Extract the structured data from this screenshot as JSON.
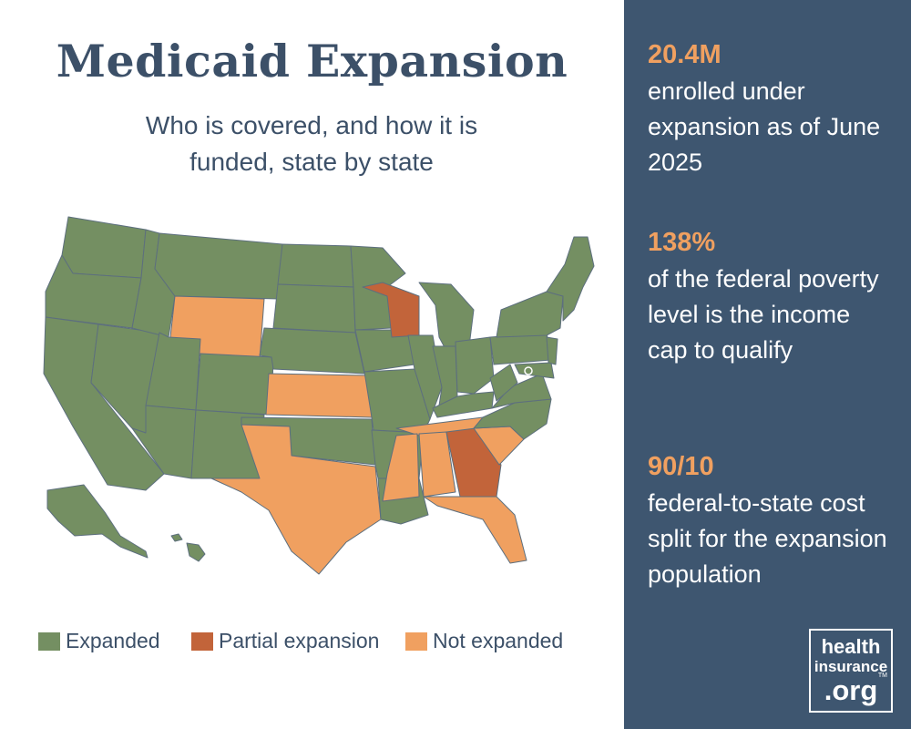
{
  "header": {
    "title": "Medicaid Expansion",
    "subtitle": "Who is covered, and how it is funded, state by state"
  },
  "colors": {
    "expanded": "#748f62",
    "partial": "#c2643a",
    "not_expanded": "#f0a060",
    "borders": "#5d6f7e",
    "panel": "#3e5670",
    "stat_accent": "#f0a060"
  },
  "map": {
    "state_status": {
      "WY": "not_expanded",
      "KS": "not_expanded",
      "TX": "not_expanded",
      "TN": "not_expanded",
      "MS": "not_expanded",
      "AL": "not_expanded",
      "FL": "not_expanded",
      "SC": "not_expanded",
      "WI": "partial",
      "GA": "partial"
    },
    "default_status": "expanded"
  },
  "legend": {
    "items": [
      {
        "label": "Expanded",
        "status": "expanded"
      },
      {
        "label": "Partial expansion",
        "status": "partial"
      },
      {
        "label": "Not expanded",
        "status": "not_expanded"
      }
    ]
  },
  "stats": [
    {
      "value": "20.4M",
      "description": "enrolled under expansion as of June 2025"
    },
    {
      "value": "138%",
      "description": "of the federal poverty level is the income cap to qualify"
    },
    {
      "value": "90/10",
      "description": "federal-to-state cost split for the expansion population"
    }
  ],
  "logo": {
    "line1": "health",
    "line2": "insurance",
    "line3": ".org",
    "tm": "TM"
  }
}
